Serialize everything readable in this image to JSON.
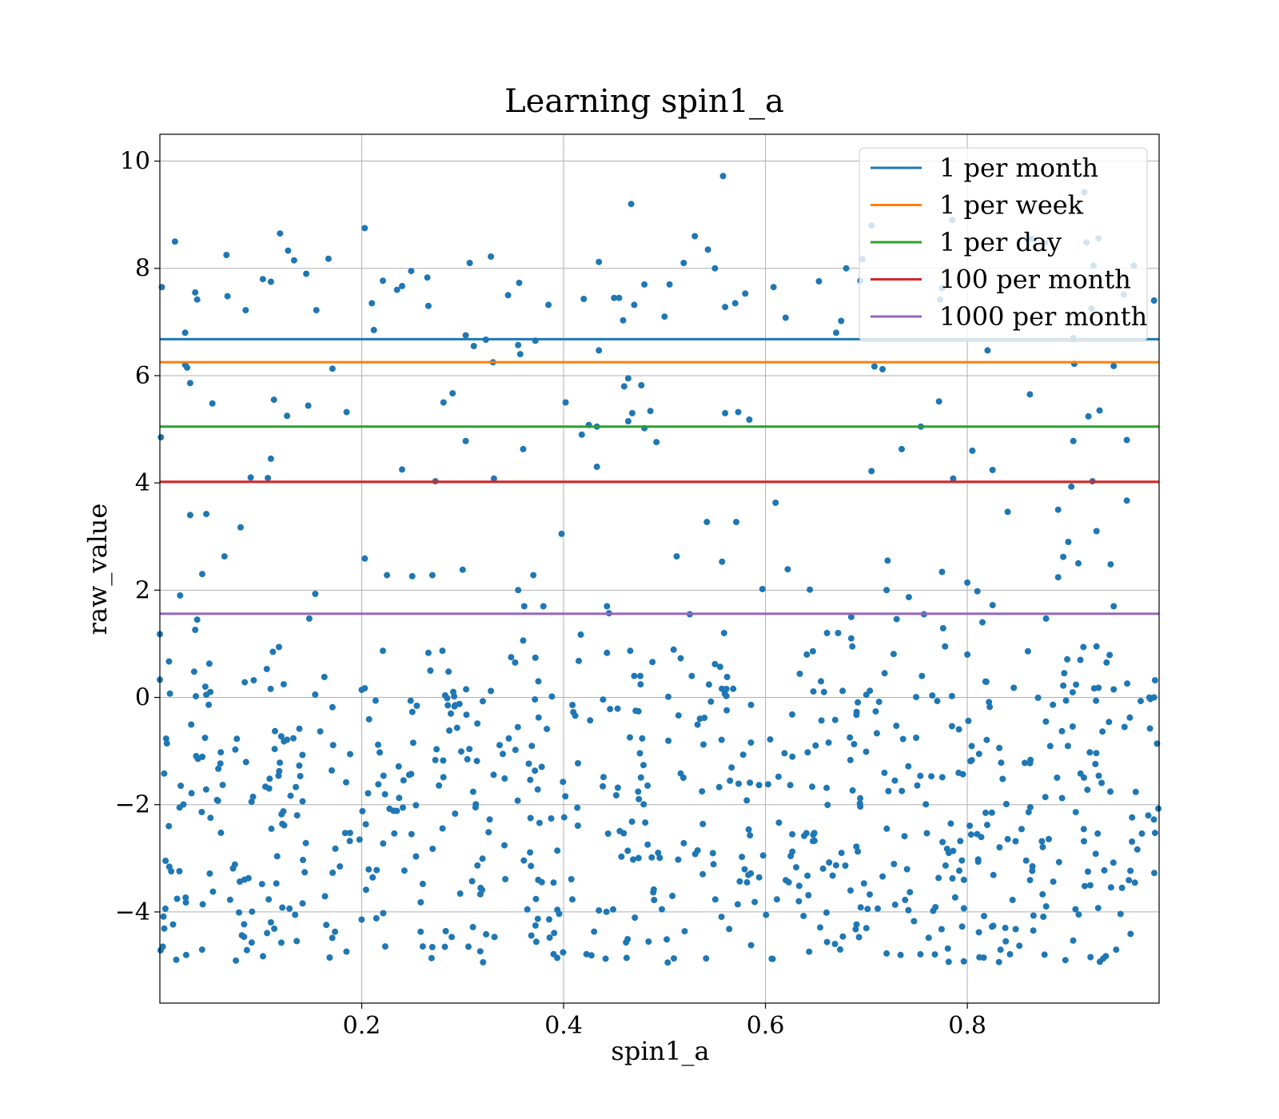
{
  "chart_data": {
    "type": "scatter",
    "title": "Learning spin1_a",
    "xlabel": "spin1_a",
    "ylabel": "raw_value",
    "xlim": [
      0.0,
      0.99
    ],
    "ylim": [
      -5.7,
      10.5
    ],
    "x_ticks": [
      0.2,
      0.4,
      0.6,
      0.8
    ],
    "x_tick_labels": [
      "0.2",
      "0.4",
      "0.6",
      "0.8"
    ],
    "y_ticks": [
      -4,
      -2,
      0,
      2,
      4,
      6,
      8,
      10
    ],
    "y_tick_labels": [
      "−4",
      "−2",
      "0",
      "2",
      "4",
      "6",
      "8",
      "10"
    ],
    "grid": true,
    "legend_position": "top-right",
    "point_color": "#1f77b4",
    "hlines": [
      {
        "name": "1 per month",
        "y": 6.68,
        "color": "#1f77b4"
      },
      {
        "name": "1 per week",
        "y": 6.25,
        "color": "#ff7f0e"
      },
      {
        "name": "1 per day",
        "y": 5.05,
        "color": "#2ca02c"
      },
      {
        "name": "100 per month",
        "y": 4.02,
        "color": "#d62728"
      },
      {
        "name": "1000 per month",
        "y": 1.56,
        "color": "#9467bd"
      }
    ],
    "points": [
      [
        0.002,
        7.65
      ],
      [
        0.015,
        8.5
      ],
      [
        0.025,
        6.8
      ],
      [
        0.035,
        7.55
      ],
      [
        0.037,
        7.42
      ],
      [
        0.066,
        8.25
      ],
      [
        0.067,
        7.48
      ],
      [
        0.085,
        7.22
      ],
      [
        0.102,
        7.8
      ],
      [
        0.11,
        7.75
      ],
      [
        0.119,
        8.65
      ],
      [
        0.127,
        8.33
      ],
      [
        0.133,
        8.15
      ],
      [
        0.145,
        7.9
      ],
      [
        0.155,
        7.22
      ],
      [
        0.167,
        8.18
      ],
      [
        0.203,
        8.75
      ],
      [
        0.21,
        7.35
      ],
      [
        0.221,
        7.77
      ],
      [
        0.235,
        7.6
      ],
      [
        0.24,
        7.67
      ],
      [
        0.249,
        7.95
      ],
      [
        0.265,
        7.83
      ],
      [
        0.266,
        7.3
      ],
      [
        0.307,
        8.1
      ],
      [
        0.311,
        6.55
      ],
      [
        0.323,
        6.67
      ],
      [
        0.328,
        8.22
      ],
      [
        0.345,
        7.5
      ],
      [
        0.356,
        7.73
      ],
      [
        0.385,
        7.32
      ],
      [
        0.42,
        7.43
      ],
      [
        0.435,
        8.12
      ],
      [
        0.45,
        7.45
      ],
      [
        0.455,
        7.45
      ],
      [
        0.459,
        7.03
      ],
      [
        0.47,
        7.32
      ],
      [
        0.48,
        7.7
      ],
      [
        0.467,
        9.2
      ],
      [
        0.558,
        9.72
      ],
      [
        0.5,
        7.1
      ],
      [
        0.505,
        7.7
      ],
      [
        0.519,
        8.1
      ],
      [
        0.53,
        8.6
      ],
      [
        0.543,
        8.35
      ],
      [
        0.55,
        8.0
      ],
      [
        0.56,
        7.28
      ],
      [
        0.57,
        7.35
      ],
      [
        0.58,
        7.53
      ],
      [
        0.608,
        7.65
      ],
      [
        0.62,
        7.08
      ],
      [
        0.653,
        7.76
      ],
      [
        0.696,
        8.17
      ],
      [
        0.705,
        8.8
      ],
      [
        0.68,
        8.0
      ],
      [
        0.694,
        7.77
      ],
      [
        0.67,
        6.8
      ],
      [
        0.675,
        7.02
      ],
      [
        0.775,
        7.63
      ],
      [
        0.785,
        8.9
      ],
      [
        0.773,
        7.42
      ],
      [
        0.864,
        8.55
      ],
      [
        0.877,
        8.48
      ],
      [
        0.916,
        9.42
      ],
      [
        0.918,
        8.48
      ],
      [
        0.93,
        8.56
      ],
      [
        0.923,
        7.25
      ],
      [
        0.955,
        7.51
      ],
      [
        0.965,
        8.05
      ],
      [
        0.985,
        7.4
      ],
      [
        0.925,
        8.05
      ],
      [
        0.001,
        4.85
      ],
      [
        0.025,
        6.2
      ],
      [
        0.027,
        6.15
      ],
      [
        0.03,
        5.86
      ],
      [
        0.052,
        5.48
      ],
      [
        0.171,
        6.13
      ],
      [
        0.113,
        5.55
      ],
      [
        0.126,
        5.25
      ],
      [
        0.147,
        5.44
      ],
      [
        0.185,
        5.32
      ],
      [
        0.212,
        6.85
      ],
      [
        0.303,
        6.75
      ],
      [
        0.33,
        6.25
      ],
      [
        0.355,
        6.57
      ],
      [
        0.357,
        6.4
      ],
      [
        0.372,
        6.65
      ],
      [
        0.435,
        6.47
      ],
      [
        0.281,
        5.5
      ],
      [
        0.29,
        5.67
      ],
      [
        0.303,
        4.78
      ],
      [
        0.402,
        5.5
      ],
      [
        0.418,
        4.9
      ],
      [
        0.425,
        5.08
      ],
      [
        0.433,
        5.05
      ],
      [
        0.46,
        5.8
      ],
      [
        0.464,
        5.95
      ],
      [
        0.464,
        5.15
      ],
      [
        0.468,
        5.3
      ],
      [
        0.477,
        5.82
      ],
      [
        0.48,
        5.02
      ],
      [
        0.486,
        5.34
      ],
      [
        0.492,
        4.76
      ],
      [
        0.56,
        5.3
      ],
      [
        0.573,
        5.32
      ],
      [
        0.584,
        5.18
      ],
      [
        0.708,
        6.17
      ],
      [
        0.716,
        6.12
      ],
      [
        0.754,
        5.05
      ],
      [
        0.772,
        5.52
      ],
      [
        0.82,
        6.47
      ],
      [
        0.862,
        5.65
      ],
      [
        0.92,
        5.24
      ],
      [
        0.945,
        6.18
      ],
      [
        0.931,
        5.35
      ],
      [
        0.958,
        4.8
      ],
      [
        0.905,
        4.78
      ],
      [
        0.735,
        4.63
      ],
      [
        0.805,
        4.6
      ],
      [
        0.825,
        4.24
      ],
      [
        0.905,
        6.7
      ],
      [
        0.906,
        6.22
      ],
      [
        0.11,
        4.45
      ],
      [
        0.09,
        4.1
      ],
      [
        0.107,
        4.09
      ],
      [
        0.24,
        4.25
      ],
      [
        0.273,
        4.03
      ],
      [
        0.331,
        4.08
      ],
      [
        0.36,
        4.63
      ],
      [
        0.433,
        4.3
      ],
      [
        0.705,
        4.22
      ],
      [
        0.786,
        4.08
      ],
      [
        0.924,
        4.03
      ],
      [
        0.03,
        3.4
      ],
      [
        0.046,
        3.42
      ],
      [
        0.08,
        3.17
      ],
      [
        0.042,
        2.3
      ],
      [
        0.064,
        2.63
      ],
      [
        0.02,
        1.9
      ],
      [
        0.203,
        2.59
      ],
      [
        0.225,
        2.28
      ],
      [
        0.25,
        2.26
      ],
      [
        0.27,
        2.28
      ],
      [
        0.3,
        2.38
      ],
      [
        0.361,
        1.7
      ],
      [
        0.37,
        2.28
      ],
      [
        0.355,
        2.0
      ],
      [
        0.38,
        1.7
      ],
      [
        0.398,
        3.05
      ],
      [
        0.154,
        1.93
      ],
      [
        0.148,
        1.47
      ],
      [
        0.037,
        1.45
      ],
      [
        0.035,
        1.26
      ],
      [
        0.443,
        1.7
      ],
      [
        0.445,
        1.57
      ],
      [
        0.512,
        2.63
      ],
      [
        0.525,
        1.55
      ],
      [
        0.542,
        3.27
      ],
      [
        0.557,
        2.53
      ],
      [
        0.571,
        3.27
      ],
      [
        0.597,
        2.02
      ],
      [
        0.61,
        3.63
      ],
      [
        0.622,
        2.39
      ],
      [
        0.644,
        2.01
      ],
      [
        0.721,
        2.55
      ],
      [
        0.72,
        2.0
      ],
      [
        0.742,
        1.87
      ],
      [
        0.757,
        1.55
      ],
      [
        0.775,
        2.34
      ],
      [
        0.8,
        2.14
      ],
      [
        0.81,
        1.98
      ],
      [
        0.815,
        1.4
      ],
      [
        0.825,
        1.72
      ],
      [
        0.84,
        3.46
      ],
      [
        0.878,
        1.47
      ],
      [
        0.89,
        3.5
      ],
      [
        0.89,
        2.24
      ],
      [
        0.895,
        2.62
      ],
      [
        0.9,
        2.9
      ],
      [
        0.91,
        2.5
      ],
      [
        0.928,
        3.1
      ],
      [
        0.942,
        2.48
      ],
      [
        0.945,
        1.7
      ],
      [
        0.958,
        3.67
      ],
      [
        0.903,
        3.93
      ],
      [
        0.685,
        1.5
      ],
      [
        0.73,
        1.46
      ],
      [
        0.0,
        1.18
      ],
      [
        0.0,
        0.33
      ],
      [
        0.009,
        0.67
      ],
      [
        0.01,
        0.07
      ],
      [
        0.034,
        0.48
      ],
      [
        0.045,
        0.2
      ],
      [
        0.049,
        0.63
      ],
      [
        0.046,
        0.05
      ],
      [
        0.05,
        0.1
      ],
      [
        0.093,
        0.32
      ],
      [
        0.112,
        0.85
      ],
      [
        0.118,
        0.94
      ],
      [
        0.106,
        0.53
      ],
      [
        0.163,
        0.38
      ],
      [
        0.2,
        0.14
      ],
      [
        0.203,
        0.17
      ],
      [
        0.221,
        0.87
      ],
      [
        0.28,
        0.87
      ],
      [
        0.286,
        0.48
      ],
      [
        0.268,
        0.5
      ],
      [
        0.266,
        0.83
      ],
      [
        0.328,
        0.12
      ],
      [
        0.348,
        0.75
      ],
      [
        0.36,
        1.06
      ],
      [
        0.352,
        0.65
      ],
      [
        0.372,
        0.74
      ],
      [
        0.375,
        0.3
      ],
      [
        0.417,
        1.17
      ],
      [
        0.415,
        0.68
      ],
      [
        0.443,
        0.83
      ],
      [
        0.466,
        0.87
      ],
      [
        0.47,
        0.4
      ],
      [
        0.476,
        0.4
      ],
      [
        0.488,
        0.66
      ],
      [
        0.509,
        0.89
      ],
      [
        0.516,
        0.73
      ],
      [
        0.527,
        0.4
      ],
      [
        0.55,
        0.62
      ],
      [
        0.555,
        0.57
      ],
      [
        0.544,
        0.24
      ],
      [
        0.559,
        1.2
      ],
      [
        0.562,
        0.38
      ],
      [
        0.568,
        0.16
      ],
      [
        0.641,
        0.8
      ],
      [
        0.647,
        0.86
      ],
      [
        0.661,
        1.2
      ],
      [
        0.672,
        1.2
      ],
      [
        0.655,
        0.3
      ],
      [
        0.658,
        0.1
      ],
      [
        0.634,
        0.44
      ],
      [
        0.686,
        0.95
      ],
      [
        0.685,
        1.1
      ],
      [
        0.7,
        0.05
      ],
      [
        0.718,
        0.45
      ],
      [
        0.727,
        0.81
      ],
      [
        0.755,
        0.4
      ],
      [
        0.776,
        1.29
      ],
      [
        0.778,
        0.95
      ],
      [
        0.8,
        0.8
      ],
      [
        0.846,
        0.18
      ],
      [
        0.86,
        0.86
      ],
      [
        0.895,
        0.22
      ],
      [
        0.896,
        0.45
      ],
      [
        0.899,
        0.71
      ],
      [
        0.915,
        0.94
      ],
      [
        0.912,
        0.7
      ],
      [
        0.928,
        0.95
      ],
      [
        0.93,
        0.18
      ],
      [
        0.941,
        0.79
      ],
      [
        0.945,
        0.15
      ],
      [
        0.938,
        0.65
      ],
      [
        0.986,
        0.32
      ],
      [
        0.985,
        0.0
      ]
    ],
    "dense_region": {
      "x_range": [
        0.0,
        0.99
      ],
      "y_range": [
        -4.95,
        0.3
      ],
      "count": 650
    }
  }
}
